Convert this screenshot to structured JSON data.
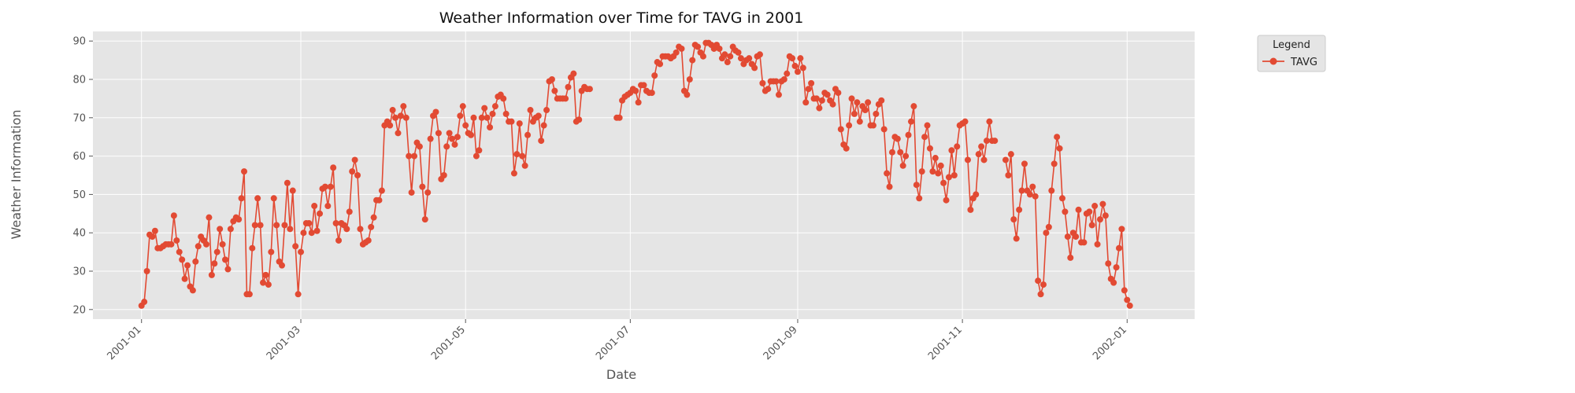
{
  "chart_data": {
    "type": "line",
    "title": "Weather Information over Time for TAVG in 2001",
    "xlabel": "Date",
    "ylabel": "Weather Information",
    "x_ticks": [
      "2001-01",
      "2001-03",
      "2001-05",
      "2001-07",
      "2001-09",
      "2001-11",
      "2002-01"
    ],
    "y_ticks": [
      20,
      30,
      40,
      50,
      60,
      70,
      80,
      90
    ],
    "xlim": [
      "2000-12-14",
      "2002-01-26"
    ],
    "ylim": [
      17.5,
      92.5
    ],
    "grid": true,
    "legend": {
      "title": "Legend",
      "placement": "outside-top-right"
    },
    "series": [
      {
        "name": "TAVG",
        "color": "#E24A33",
        "marker": "circle",
        "segments": [
          {
            "start": "2001-01-01",
            "values": [
              21,
              22,
              30,
              39.5,
              39,
              40.5,
              36,
              36,
              36.5,
              37,
              37,
              37,
              44.5,
              38,
              35,
              33,
              28,
              31.5,
              26,
              25,
              32.5,
              36.5,
              39,
              38,
              37,
              44,
              29,
              32,
              35,
              41,
              37,
              33,
              30.5,
              41,
              43,
              44,
              43.5,
              49,
              56,
              24,
              24,
              36,
              42,
              49,
              42,
              27,
              29,
              26.5,
              35,
              49,
              42,
              32.5,
              31.5,
              42,
              53,
              41,
              51,
              36.5,
              24,
              35,
              40,
              42.5,
              42.5,
              40,
              47,
              40.5,
              45,
              51.5,
              52,
              47,
              52,
              57,
              42.5,
              38,
              42.5,
              42,
              41,
              45.5,
              56,
              59,
              55,
              41,
              37,
              37.5,
              38,
              41.5,
              44,
              48.5,
              48.5,
              51,
              68,
              69,
              68,
              72,
              70,
              66,
              70.5,
              73,
              70,
              60,
              50.5,
              60,
              63.5,
              62.5,
              52,
              43.5,
              50.5,
              64.5,
              70.5,
              71.5,
              66,
              54,
              55,
              62.5,
              66,
              64.5,
              63,
              65,
              70.5,
              73,
              68,
              66,
              65.5,
              70,
              60,
              61.5,
              70,
              72.5,
              70,
              67.5,
              71,
              73,
              75.5,
              76,
              75,
              71,
              69,
              69,
              55.5,
              60.5,
              68.5,
              60,
              57.5,
              65.5,
              72,
              69,
              70,
              70.5,
              64,
              68,
              72,
              79.5,
              80,
              77,
              75,
              75,
              75,
              75,
              78,
              80.5,
              81.5,
              69,
              69.5,
              77,
              78,
              77.5,
              77.5
            ]
          },
          {
            "start": "2001-06-26",
            "values": [
              70,
              70,
              74.5,
              75.5,
              76,
              76.5,
              77.5,
              77,
              74,
              78.5,
              78.5,
              77,
              76.5,
              76.5,
              81,
              84.5,
              84,
              86,
              86,
              86,
              85.5,
              86,
              87,
              88.5,
              88,
              77,
              76,
              80,
              85,
              89,
              88.5,
              87,
              86,
              89.5,
              89.5,
              89,
              88,
              89,
              88,
              85.5,
              86.5,
              84.5,
              86,
              88.5,
              87.5,
              87,
              85.5,
              84,
              85,
              85.5,
              84,
              83,
              86,
              86.5,
              79,
              77,
              77.5,
              79.5,
              79.5,
              79.5,
              76,
              79.5,
              80,
              81.5,
              86,
              85.5,
              83.5,
              82,
              85.5,
              83,
              74,
              77.5,
              79,
              75,
              75,
              72.5,
              74.5,
              76.5,
              76,
              74.5,
              73.5,
              77.5,
              76.5,
              67,
              63,
              62,
              68,
              75,
              71,
              74,
              69,
              73,
              72,
              74,
              68,
              68,
              71,
              73.5,
              74.5,
              67,
              55.5,
              52,
              61,
              65,
              64.5,
              61,
              57.5,
              60,
              65.5,
              69,
              73,
              52.5,
              49,
              56,
              65,
              68,
              62,
              56,
              59.5,
              55.5,
              57.5,
              53,
              48.5,
              54.5,
              61.5,
              55,
              62.5,
              68,
              68.5,
              69,
              59,
              46,
              49,
              50,
              60.5,
              62.5,
              59,
              64,
              69,
              64,
              64
            ]
          },
          {
            "start": "2001-11-17",
            "values": [
              59,
              55,
              60.5,
              43.5,
              38.5,
              46,
              51,
              58,
              51,
              50,
              52,
              49.5,
              27.5,
              24,
              26.5,
              40,
              41.5,
              51,
              58,
              65,
              62,
              49,
              45.5,
              39,
              33.5,
              40,
              39,
              46,
              37.5,
              37.5,
              45,
              45.5,
              42,
              47,
              37,
              43.5,
              47.5,
              44.5,
              32,
              28,
              27,
              31,
              36,
              41,
              25,
              22.5,
              21
            ]
          }
        ]
      }
    ]
  }
}
